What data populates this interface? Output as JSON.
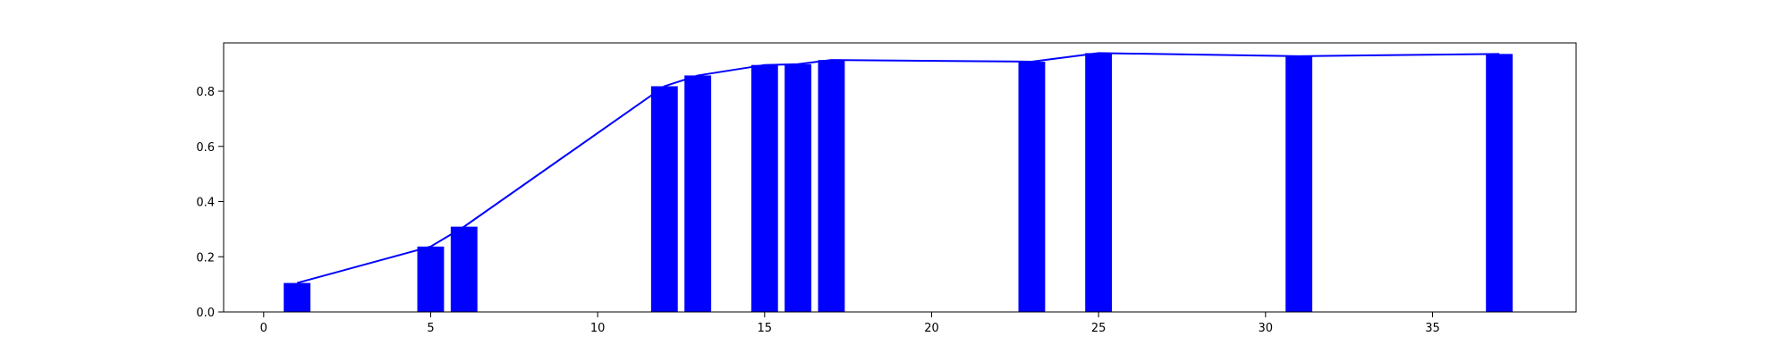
{
  "chart_data": {
    "type": "bar",
    "title": "",
    "xlabel": "",
    "ylabel": "",
    "xlim": [
      -1.2,
      39.3
    ],
    "ylim": [
      0,
      0.975
    ],
    "grid": false,
    "xticks": [
      0,
      5,
      10,
      15,
      20,
      25,
      30,
      35
    ],
    "yticks": [
      0.0,
      0.2,
      0.4,
      0.6,
      0.8
    ],
    "xtick_labels": [
      "0",
      "5",
      "10",
      "15",
      "20",
      "25",
      "30",
      "35"
    ],
    "ytick_labels": [
      "0.0",
      "0.2",
      "0.4",
      "0.6",
      "0.8"
    ],
    "bar_width": 0.8,
    "color": "#0000ff",
    "series": [
      {
        "kind": "bar",
        "x": [
          1,
          5,
          6,
          12,
          13,
          15,
          16,
          17,
          23,
          25,
          31,
          37
        ],
        "values": [
          0.105,
          0.237,
          0.309,
          0.818,
          0.857,
          0.895,
          0.898,
          0.913,
          0.907,
          0.938,
          0.927,
          0.935
        ]
      },
      {
        "kind": "line",
        "x": [
          1,
          5,
          6,
          12,
          13,
          15,
          16,
          17,
          23,
          25,
          31,
          37
        ],
        "values": [
          0.105,
          0.237,
          0.309,
          0.818,
          0.857,
          0.895,
          0.898,
          0.913,
          0.907,
          0.938,
          0.927,
          0.935
        ]
      }
    ]
  }
}
